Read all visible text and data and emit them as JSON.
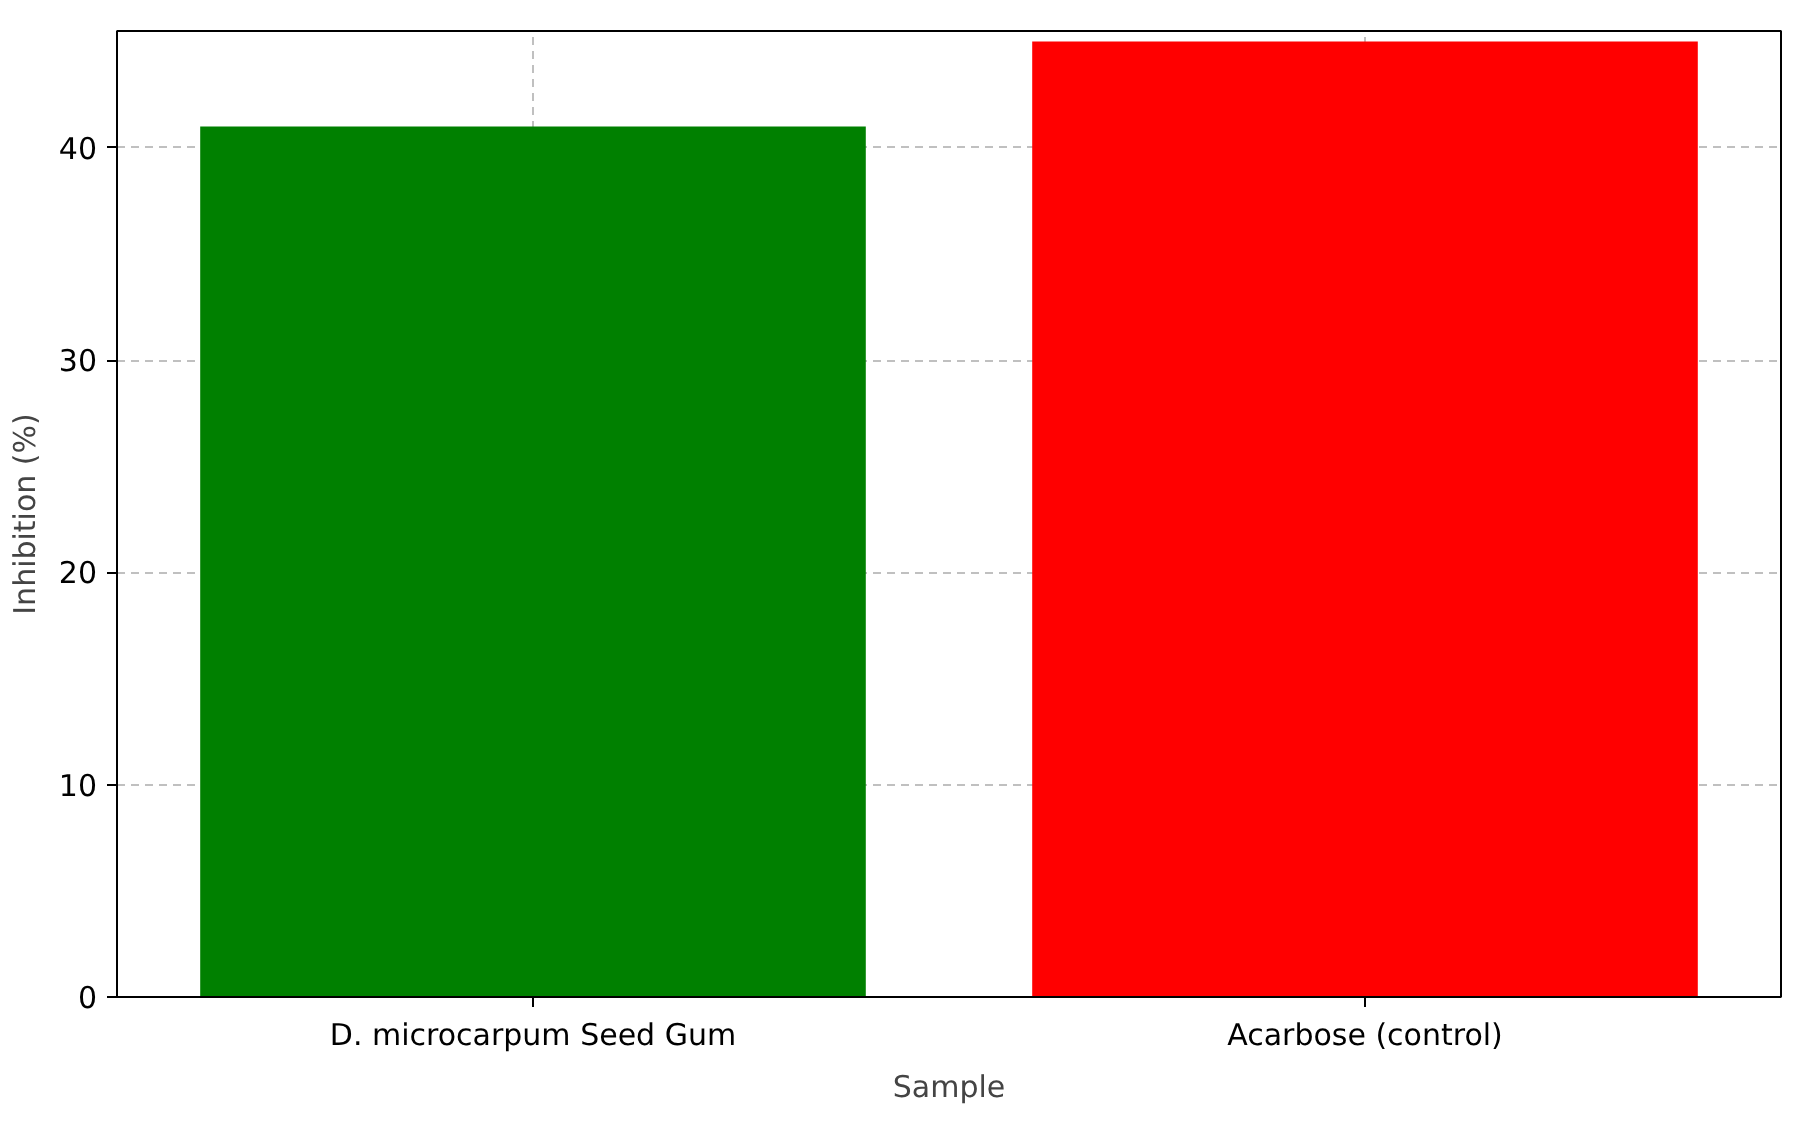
{
  "chart_data": {
    "type": "bar",
    "xlabel": "Sample",
    "ylabel": "Inhibition (%)",
    "categories": [
      "D. microcarpum Seed Gum",
      "Acarbose (control)"
    ],
    "values": [
      41,
      45
    ],
    "colors": [
      "#008000",
      "#ff0000"
    ],
    "ylim": [
      0,
      45.5
    ],
    "yticks": [
      0,
      10,
      20,
      30,
      40
    ],
    "grid": true
  }
}
